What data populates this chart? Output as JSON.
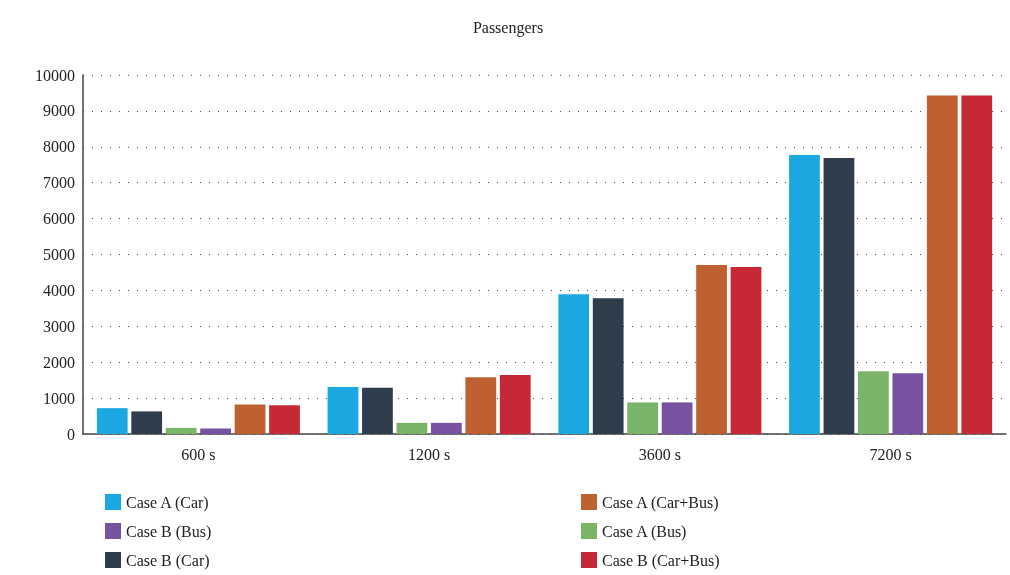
{
  "chart_data": {
    "type": "bar",
    "title": "Passengers",
    "categories": [
      "600 s",
      "1200 s",
      "3600 s",
      "7200 s"
    ],
    "series": [
      {
        "name": "Case A (Car)",
        "color": "#1ba8e0",
        "values": [
          720,
          1310,
          3890,
          7770
        ]
      },
      {
        "name": "Case B (Car)",
        "color": "#2e3c4c",
        "values": [
          630,
          1290,
          3780,
          7690
        ]
      },
      {
        "name": "Case A (Bus)",
        "color": "#79b469",
        "values": [
          170,
          310,
          880,
          1750
        ]
      },
      {
        "name": "Case B (Bus)",
        "color": "#7652a0",
        "values": [
          150,
          310,
          880,
          1690
        ]
      },
      {
        "name": "Case A (Car+Bus)",
        "color": "#bf6031",
        "values": [
          820,
          1580,
          4710,
          9430
        ]
      },
      {
        "name": "Case B (Car+Bus)",
        "color": "#c62935",
        "values": [
          800,
          1640,
          4650,
          9430
        ]
      }
    ],
    "ylim": [
      0,
      10000
    ],
    "yticks": [
      0,
      1000,
      2000,
      3000,
      4000,
      5000,
      6000,
      7000,
      8000,
      9000,
      10000
    ],
    "grid": "y",
    "legend": "bottom"
  }
}
